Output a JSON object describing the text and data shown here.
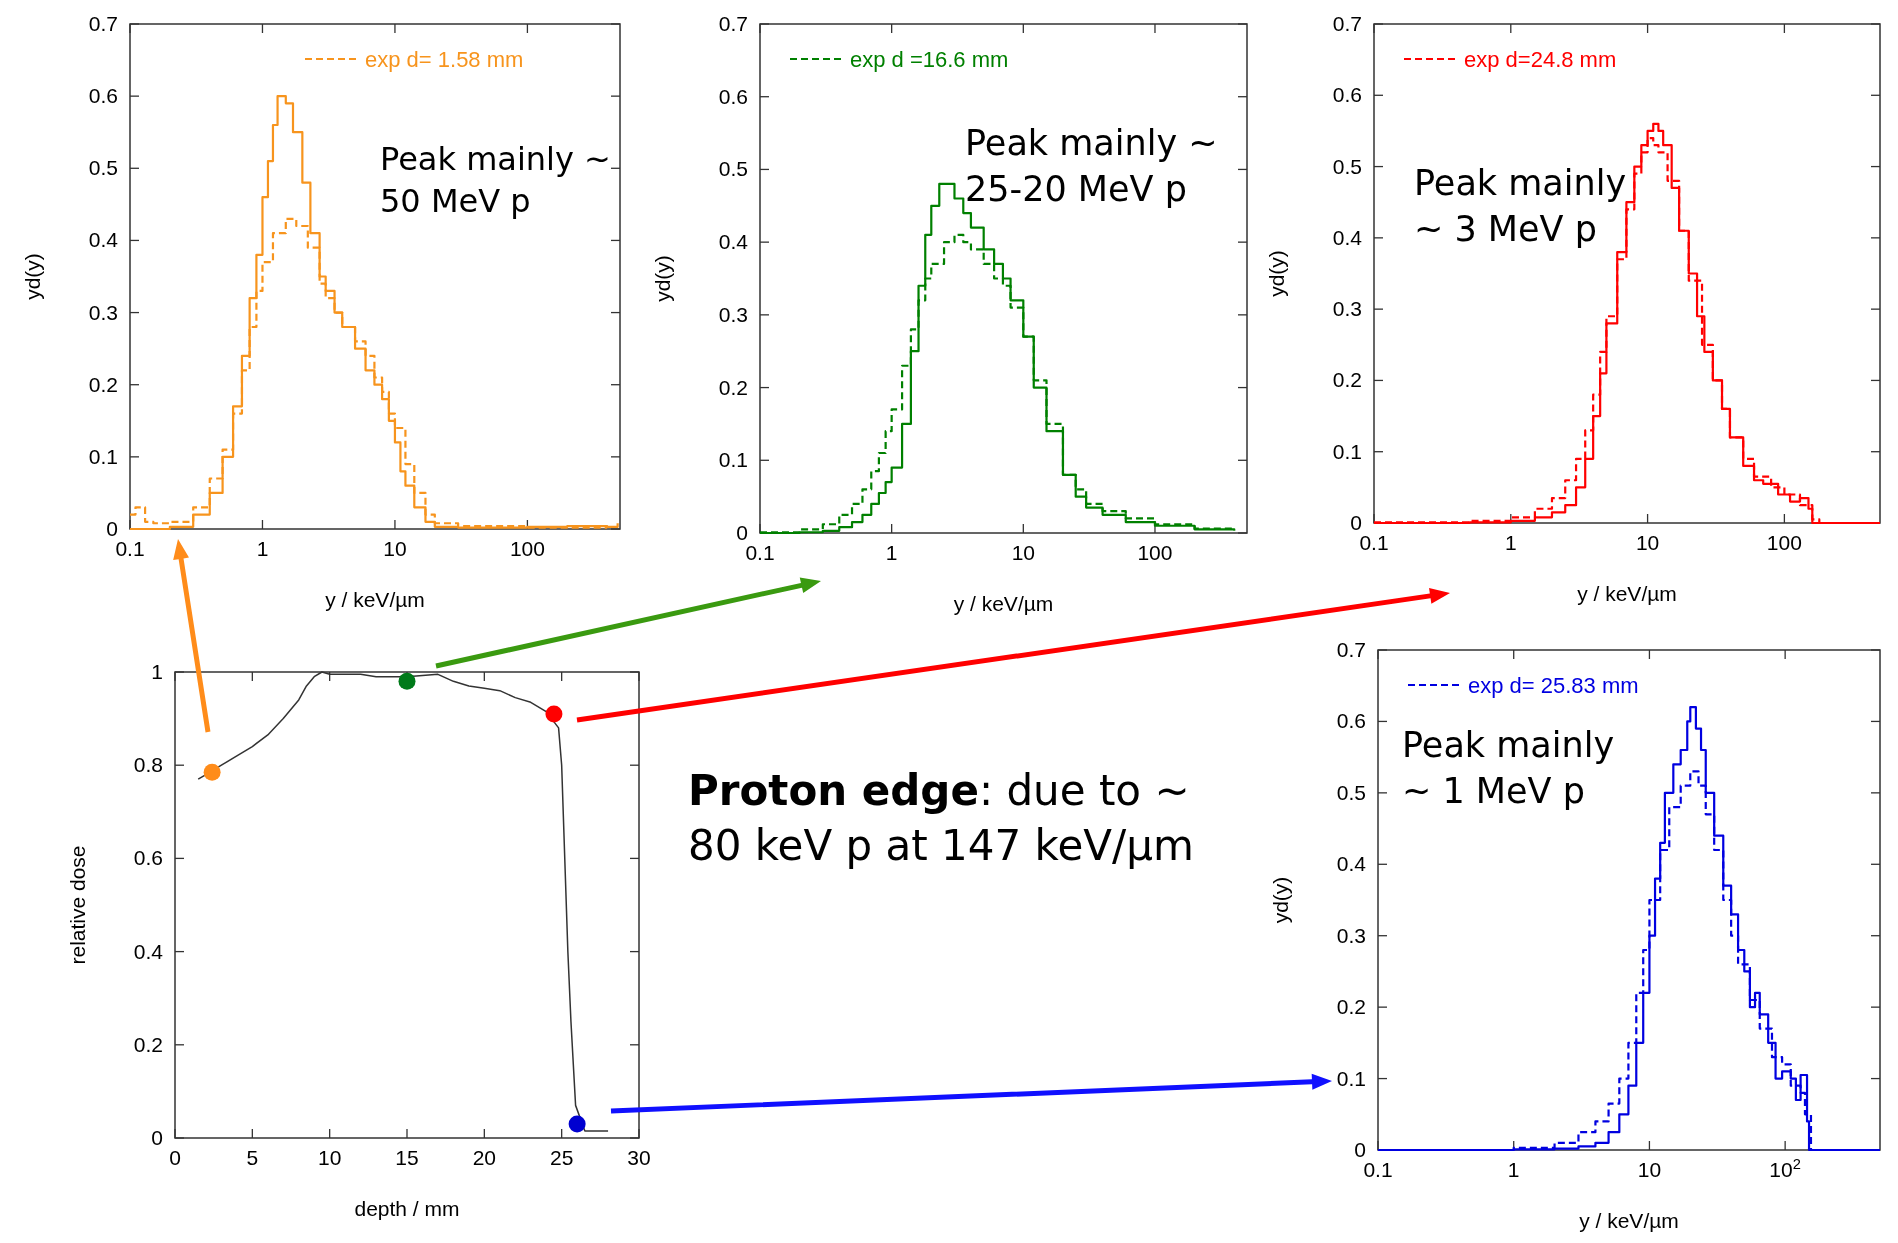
{
  "chart_data": [
    {
      "type": "step",
      "xlabel": "y / keV/µm",
      "ylabel": "yd(y)",
      "log": "x",
      "xlim": [
        0.1,
        500
      ],
      "ylim": [
        0,
        0.7
      ],
      "xticks": [
        0.1,
        1,
        10,
        100
      ],
      "yticks": [
        0,
        0.1,
        0.2,
        0.3,
        0.4,
        0.5,
        0.6,
        0.7
      ],
      "legend": "top right",
      "annotations": [
        "Peak mainly ~\n50 MeV p"
      ],
      "series": [
        {
          "name": "exp d= 1.58 mm",
          "color": "#f7941d",
          "line_style": "dashed",
          "x": [
            0.1,
            0.11,
            0.13,
            0.15,
            0.2,
            0.3,
            0.4,
            0.5,
            0.6,
            0.7,
            0.8,
            0.9,
            1.0,
            1.2,
            1.5,
            1.8,
            2.2,
            2.7,
            3,
            3.5,
            4,
            5,
            6,
            7,
            8,
            9,
            10,
            12,
            14,
            17,
            20,
            30,
            100,
            400
          ],
          "values": [
            0.02,
            0.03,
            0.01,
            0.008,
            0.01,
            0.03,
            0.07,
            0.11,
            0.16,
            0.22,
            0.28,
            0.33,
            0.37,
            0.41,
            0.43,
            0.42,
            0.39,
            0.34,
            0.32,
            0.3,
            0.28,
            0.26,
            0.24,
            0.21,
            0.19,
            0.16,
            0.14,
            0.09,
            0.05,
            0.02,
            0.008,
            0.004,
            0.002,
            0.002
          ]
        },
        {
          "color": "#f7941d",
          "line_style": "solid",
          "x": [
            0.1,
            0.2,
            0.3,
            0.4,
            0.5,
            0.6,
            0.7,
            0.8,
            0.9,
            1.0,
            1.1,
            1.2,
            1.3,
            1.5,
            1.7,
            2.0,
            2.3,
            2.7,
            3,
            3.5,
            4,
            5,
            6,
            7,
            8,
            9,
            10,
            11,
            12,
            14,
            17,
            20,
            30,
            50,
            100,
            200,
            400,
            480
          ],
          "values": [
            0,
            0.003,
            0.02,
            0.05,
            0.1,
            0.17,
            0.24,
            0.32,
            0.38,
            0.46,
            0.51,
            0.56,
            0.6,
            0.59,
            0.55,
            0.48,
            0.41,
            0.35,
            0.33,
            0.3,
            0.28,
            0.25,
            0.22,
            0.2,
            0.18,
            0.15,
            0.12,
            0.08,
            0.06,
            0.03,
            0.01,
            0.003,
            0.002,
            0.002,
            0.003,
            0.004,
            0.003,
            0.008
          ]
        }
      ]
    },
    {
      "type": "step",
      "xlabel": "y / keV/µm",
      "ylabel": "yd(y)",
      "log": "x",
      "xlim": [
        0.1,
        500
      ],
      "ylim": [
        0,
        0.7
      ],
      "xticks": [
        0.1,
        1,
        10,
        100
      ],
      "yticks": [
        0,
        0.1,
        0.2,
        0.3,
        0.4,
        0.5,
        0.6,
        0.7
      ],
      "legend": "top left",
      "annotations": [
        "Peak mainly ~\n25-20 MeV p"
      ],
      "series": [
        {
          "name": "exp d =16.6 mm",
          "color": "#008000",
          "line_style": "dashed",
          "x": [
            0.1,
            0.2,
            0.3,
            0.4,
            0.5,
            0.6,
            0.7,
            0.8,
            0.9,
            1.0,
            1.2,
            1.4,
            1.6,
            1.8,
            2,
            2.5,
            3,
            3.5,
            4,
            5,
            6,
            7,
            8,
            10,
            12,
            15,
            20,
            25,
            30,
            40,
            60,
            100,
            200,
            400
          ],
          "values": [
            0.001,
            0.005,
            0.012,
            0.025,
            0.04,
            0.06,
            0.085,
            0.11,
            0.14,
            0.17,
            0.23,
            0.28,
            0.32,
            0.35,
            0.37,
            0.4,
            0.41,
            0.4,
            0.39,
            0.37,
            0.35,
            0.34,
            0.31,
            0.27,
            0.21,
            0.15,
            0.08,
            0.06,
            0.04,
            0.03,
            0.02,
            0.012,
            0.006,
            0.004
          ]
        },
        {
          "color": "#008000",
          "line_style": "solid",
          "x": [
            0.1,
            0.2,
            0.3,
            0.4,
            0.5,
            0.6,
            0.7,
            0.8,
            0.9,
            1.0,
            1.2,
            1.4,
            1.6,
            1.8,
            2.0,
            2.3,
            2.6,
            3,
            3.5,
            4,
            5,
            6,
            7,
            8,
            10,
            12,
            15,
            20,
            25,
            30,
            40,
            60,
            100,
            200,
            400
          ],
          "values": [
            0,
            0.001,
            0.003,
            0.008,
            0.015,
            0.025,
            0.04,
            0.055,
            0.07,
            0.09,
            0.15,
            0.25,
            0.34,
            0.41,
            0.45,
            0.48,
            0.48,
            0.46,
            0.44,
            0.42,
            0.39,
            0.37,
            0.35,
            0.32,
            0.27,
            0.2,
            0.14,
            0.08,
            0.05,
            0.035,
            0.025,
            0.015,
            0.01,
            0.005,
            0.003
          ]
        }
      ]
    },
    {
      "type": "step",
      "xlabel": "y / keV/µm",
      "ylabel": "yd(y)",
      "log": "x",
      "xlim": [
        0.1,
        500
      ],
      "ylim": [
        0,
        0.7
      ],
      "xticks": [
        0.1,
        1,
        10,
        100
      ],
      "yticks": [
        0,
        0.1,
        0.2,
        0.3,
        0.4,
        0.5,
        0.6,
        0.7
      ],
      "legend": "top left",
      "annotations": [
        "Peak mainly\n~ 3 MeV p"
      ],
      "series": [
        {
          "name": "exp d=24.8 mm",
          "color": "#ff0000",
          "line_style": "dashed",
          "x": [
            0.1,
            0.5,
            1,
            1.5,
            2,
            2.5,
            3,
            3.5,
            4,
            4.5,
            5,
            6,
            7,
            8,
            9,
            10,
            11,
            12,
            14,
            17,
            20,
            25,
            30,
            35,
            40,
            50,
            60,
            80,
            100,
            130,
            160,
            180,
            500
          ],
          "values": [
            0.001,
            0.003,
            0.008,
            0.02,
            0.035,
            0.06,
            0.09,
            0.13,
            0.18,
            0.24,
            0.29,
            0.37,
            0.44,
            0.49,
            0.52,
            0.54,
            0.53,
            0.52,
            0.48,
            0.41,
            0.34,
            0.25,
            0.2,
            0.16,
            0.12,
            0.09,
            0.065,
            0.05,
            0.04,
            0.025,
            0.005,
            0,
            0
          ]
        },
        {
          "color": "#ff0000",
          "line_style": "solid",
          "x": [
            0.1,
            0.5,
            1,
            1.5,
            2,
            2.5,
            3,
            3.5,
            4,
            4.5,
            5,
            6,
            7,
            8,
            9,
            10,
            11,
            12,
            13,
            15,
            17,
            20,
            23,
            26,
            30,
            35,
            40,
            50,
            60,
            70,
            90,
            110,
            130,
            150,
            160,
            500
          ],
          "values": [
            0,
            0.001,
            0.003,
            0.008,
            0.015,
            0.025,
            0.05,
            0.09,
            0.15,
            0.21,
            0.28,
            0.38,
            0.45,
            0.5,
            0.53,
            0.55,
            0.56,
            0.55,
            0.53,
            0.47,
            0.41,
            0.35,
            0.29,
            0.24,
            0.2,
            0.16,
            0.12,
            0.08,
            0.06,
            0.055,
            0.04,
            0.03,
            0.035,
            0.02,
            0,
            0
          ]
        }
      ]
    },
    {
      "type": "step",
      "xlabel": "y / keV/µm",
      "ylabel": "yd(y)",
      "log": "x",
      "xlim": [
        0.1,
        500
      ],
      "ylim": [
        0,
        0.7
      ],
      "xticks": [
        0.1,
        1,
        10,
        {
          "value": 100,
          "label": "10$^{2}$"
        }
      ],
      "yticks": [
        0,
        0.1,
        0.2,
        0.3,
        0.4,
        0.5,
        0.6,
        0.7
      ],
      "legend": "top left",
      "annotations": [
        "Peak mainly\n~ 1 MeV p"
      ],
      "series": [
        {
          "name": "exp  d= 25.83 mm",
          "color": "#0000e0",
          "line_style": "dashed",
          "x": [
            0.1,
            1,
            2,
            3,
            4,
            5,
            6,
            7,
            8,
            9,
            10,
            12,
            14,
            17,
            20,
            23,
            26,
            30,
            35,
            40,
            45,
            55,
            65,
            80,
            95,
            110,
            130,
            140,
            155,
            500
          ],
          "values": [
            0,
            0.003,
            0.01,
            0.025,
            0.04,
            0.065,
            0.1,
            0.15,
            0.22,
            0.28,
            0.35,
            0.42,
            0.48,
            0.51,
            0.53,
            0.51,
            0.47,
            0.42,
            0.35,
            0.3,
            0.26,
            0.21,
            0.17,
            0.13,
            0.12,
            0.09,
            0.08,
            0.05,
            0,
            0
          ]
        },
        {
          "color": "#0000e0",
          "line_style": "solid",
          "x": [
            0.1,
            1,
            2,
            3,
            4,
            5,
            6,
            7,
            8,
            9,
            10,
            11,
            12,
            13,
            15,
            17,
            19,
            20,
            22,
            24,
            26,
            30,
            35,
            40,
            45,
            50,
            55,
            60,
            65,
            75,
            85,
            95,
            110,
            120,
            130,
            145,
            150,
            500
          ],
          "values": [
            0,
            0.001,
            0.002,
            0.005,
            0.01,
            0.025,
            0.05,
            0.09,
            0.15,
            0.22,
            0.3,
            0.38,
            0.43,
            0.5,
            0.54,
            0.56,
            0.6,
            0.62,
            0.59,
            0.56,
            0.5,
            0.44,
            0.37,
            0.33,
            0.28,
            0.25,
            0.2,
            0.22,
            0.19,
            0.15,
            0.1,
            0.11,
            0.1,
            0.07,
            0.105,
            0.04,
            0,
            0
          ]
        }
      ]
    },
    {
      "type": "line",
      "xlabel": "depth / mm",
      "ylabel": "relative dose",
      "xlim": [
        0,
        30
      ],
      "ylim": [
        0,
        1
      ],
      "xticks": [
        0,
        5,
        10,
        15,
        20,
        25,
        30
      ],
      "yticks": [
        0,
        0.2,
        0.4,
        0.6,
        0.8,
        1
      ],
      "annotations": [
        "Proton edge: due to ~\n80 keV p at 147 keV/µm"
      ],
      "series": [
        {
          "color": "#333333",
          "line_style": "solid",
          "x": [
            1.5,
            2,
            3,
            4,
            5,
            6,
            7,
            8,
            8.5,
            9,
            9.5,
            10,
            12,
            13,
            15,
            17,
            18,
            19,
            20,
            21,
            22,
            23,
            24,
            24.8,
            25,
            25.2,
            25.4,
            25.6,
            25.9,
            26.5,
            28
          ],
          "values": [
            0.77,
            0.78,
            0.8,
            0.82,
            0.84,
            0.865,
            0.9,
            0.94,
            0.97,
            0.99,
            1.0,
            0.995,
            0.995,
            0.99,
            0.99,
            0.995,
            0.98,
            0.97,
            0.965,
            0.96,
            0.945,
            0.935,
            0.915,
            0.88,
            0.8,
            0.6,
            0.4,
            0.25,
            0.07,
            0.015,
            0.015
          ]
        },
        {
          "type": "scatter",
          "marker": "circle",
          "x": [
            2.4,
            15,
            24.5,
            26
          ],
          "values": [
            0.785,
            0.98,
            0.91,
            0.03
          ],
          "colors": [
            "#ff8c1a",
            "#007a1a",
            "#ff0000",
            "#0000d0"
          ]
        }
      ]
    }
  ]
}
